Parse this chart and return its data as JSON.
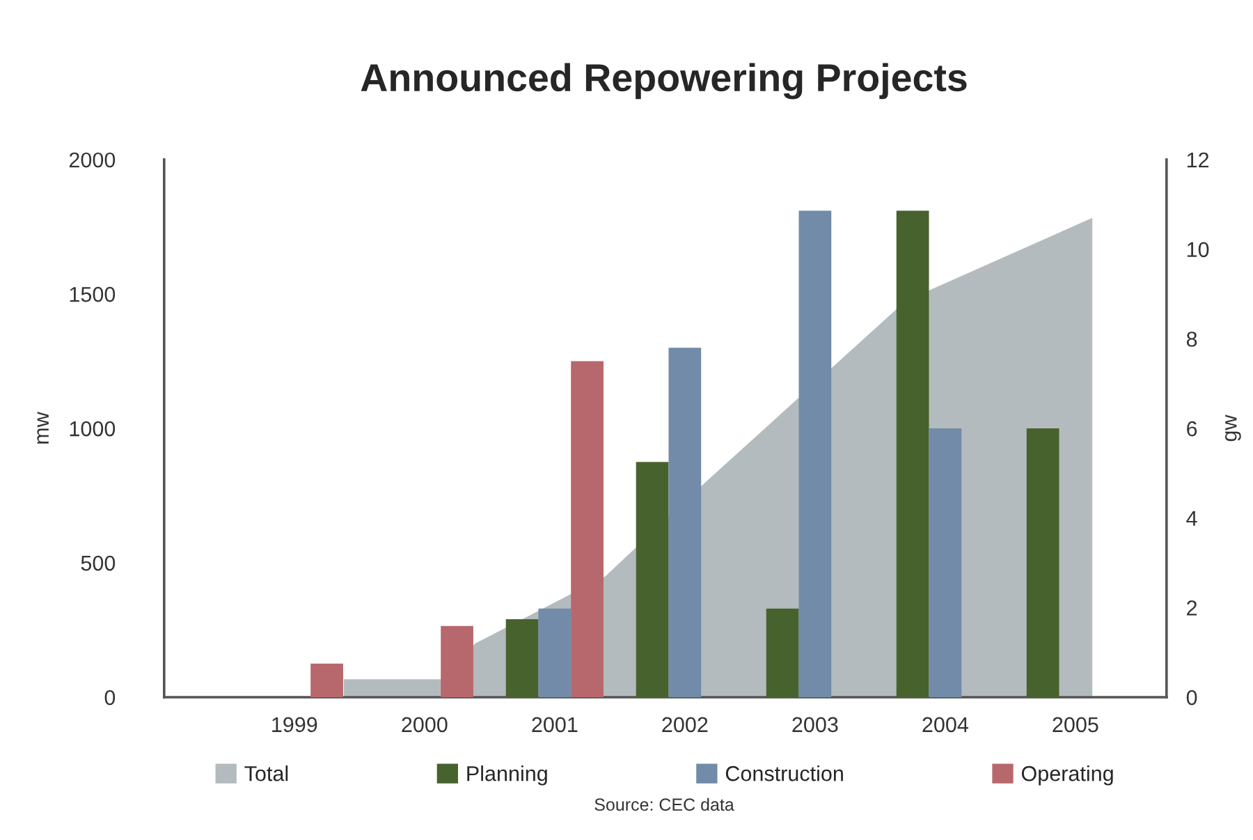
{
  "chart_data": {
    "type": "bar",
    "title": "Announced Repowering Projects",
    "x": [
      1999,
      2000,
      2001,
      2002,
      2003,
      2004,
      2005
    ],
    "xlim": [
      1998,
      2005.7
    ],
    "xticks": [
      1999,
      2000,
      2001,
      2002,
      2003,
      2004,
      2005
    ],
    "ylabel": "mw",
    "y2label": "gw",
    "ylim": [
      0,
      2000
    ],
    "yticks": [
      0,
      500,
      1000,
      1500,
      2000
    ],
    "y2lim": [
      0,
      12
    ],
    "y2ticks": [
      0,
      2,
      4,
      6,
      8,
      10,
      12
    ],
    "series": [
      {
        "name": "Total",
        "type": "area",
        "axis": "y2",
        "color": "#b4bbbe",
        "x": [
          1999.38,
          2000.13,
          2000.39,
          2001.39,
          2002.14,
          2003.64,
          2003.89,
          2005.13
        ],
        "values": [
          0.4,
          0.4,
          1.2,
          2.7,
          4.75,
          8.7,
          9.1,
          10.7
        ]
      },
      {
        "name": "Planning",
        "color": "#48622e",
        "values": [
          null,
          null,
          290,
          875,
          330,
          1810,
          1000
        ]
      },
      {
        "name": "Construction",
        "color": "#728ba9",
        "values": [
          null,
          null,
          330,
          1300,
          1810,
          1000,
          null
        ]
      },
      {
        "name": "Operating",
        "color": "#b7686d",
        "values": [
          125,
          265,
          1250,
          null,
          null,
          null,
          null
        ]
      }
    ],
    "legend": "bottom",
    "grid": false,
    "annotations": [
      "Source: CEC data"
    ]
  }
}
